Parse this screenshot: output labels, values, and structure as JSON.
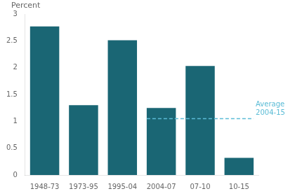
{
  "chart_data": {
    "type": "bar",
    "ylabel": "Percent",
    "categories": [
      "1948-73",
      "1973-95",
      "1995-04",
      "2004-07",
      "07-10",
      "10-15"
    ],
    "values": [
      2.77,
      1.3,
      2.51,
      1.25,
      2.03,
      0.32
    ],
    "color": "#1a6674",
    "ylim": [
      0,
      3
    ],
    "yticks": [
      0,
      0.5,
      1,
      1.5,
      2,
      2.5,
      3
    ],
    "grid": false,
    "annotations": [
      {
        "type": "hline",
        "value": 1.05,
        "from": "2004-07",
        "to": "10-15",
        "color": "#5bbcd6",
        "line_style": "dashed",
        "text": [
          "Average",
          "2004-15"
        ]
      }
    ]
  }
}
